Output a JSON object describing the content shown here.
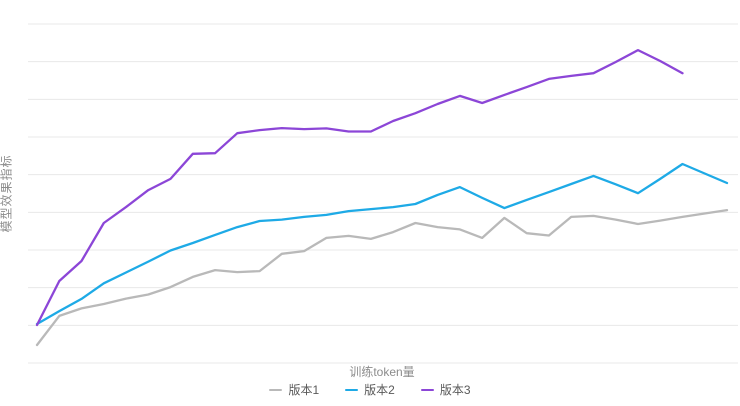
{
  "chart_data": {
    "type": "line",
    "title": "",
    "xlabel": "训练token量",
    "ylabel": "模型效果指标",
    "x_tick_labels": [],
    "y_tick_labels": [],
    "x_index": [
      0,
      1,
      2,
      3,
      4,
      5,
      6,
      7,
      8,
      9,
      10,
      11,
      12,
      13,
      14,
      15,
      16,
      17,
      18,
      19,
      20,
      21,
      22,
      23,
      24,
      25,
      26,
      27,
      28,
      29,
      30,
      31
    ],
    "ylim": [
      0,
      100
    ],
    "grid": {
      "horizontal": true,
      "vertical": false,
      "line_count": 10
    },
    "legend_position": "bottom-center",
    "series": [
      {
        "name": "版本1",
        "color": "#b9b9b9",
        "values": [
          5.3,
          13.9,
          16.1,
          17.4,
          19.0,
          20.2,
          22.4,
          25.4,
          27.4,
          26.8,
          27.1,
          32.2,
          33.0,
          36.9,
          37.5,
          36.6,
          38.6,
          41.3,
          40.1,
          39.4,
          36.9,
          42.8,
          38.3,
          37.6,
          43.1,
          43.4,
          42.3,
          41.0,
          42.0,
          43.1,
          44.1,
          45.1
        ]
      },
      {
        "name": "版本2",
        "color": "#1eaae6",
        "values": [
          11.5,
          15.3,
          18.9,
          23.5,
          26.7,
          29.9,
          33.2,
          35.4,
          37.8,
          40.1,
          41.9,
          42.3,
          43.1,
          43.7,
          44.8,
          45.4,
          46.0,
          46.9,
          49.6,
          51.9,
          48.7,
          45.7,
          48.1,
          50.4,
          52.8,
          55.2,
          52.7,
          50.1,
          54.3,
          58.7,
          55.9,
          53.1
        ]
      },
      {
        "name": "版本3",
        "color": "#8c46d7",
        "values": [
          11.2,
          24.2,
          30.1,
          41.3,
          46.0,
          51.0,
          54.3,
          61.7,
          61.9,
          67.8,
          68.7,
          69.3,
          69.0,
          69.2,
          68.3,
          68.3,
          71.4,
          73.7,
          76.4,
          78.8,
          76.7,
          79.1,
          81.4,
          83.8,
          84.7,
          85.5,
          88.8,
          92.3,
          89.1,
          85.5
        ]
      }
    ]
  },
  "styles": {
    "background": "#ffffff",
    "grid_color": "#e8e8e8",
    "axis_title_color": "#8c8c8c",
    "legend_text_color": "#5a5a5a"
  }
}
